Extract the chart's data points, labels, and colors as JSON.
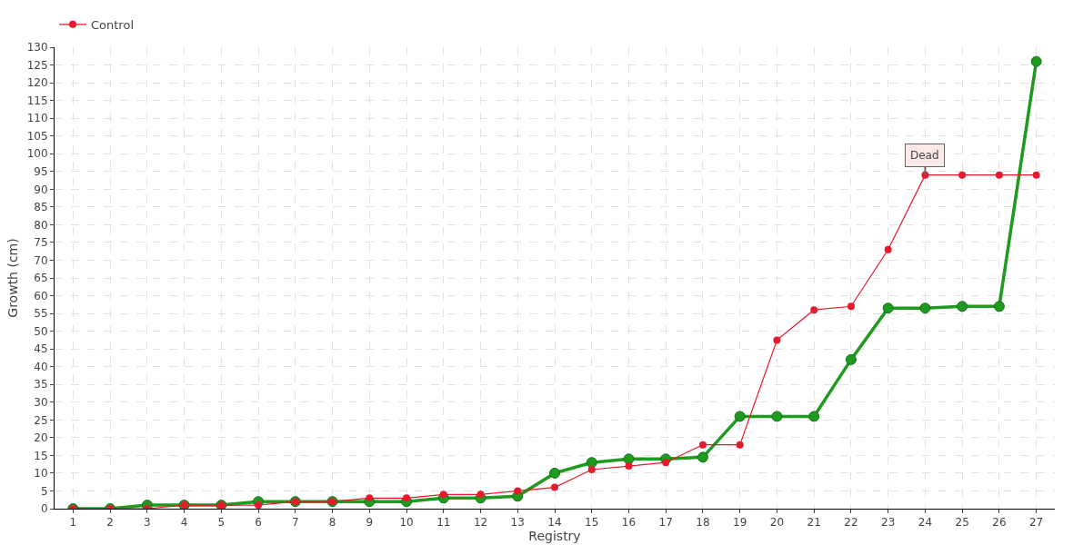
{
  "chart_data": {
    "type": "line",
    "xlabel": "Registry",
    "ylabel": "Growth (cm)",
    "x": [
      1,
      2,
      3,
      4,
      5,
      6,
      7,
      8,
      9,
      10,
      11,
      12,
      13,
      14,
      15,
      16,
      17,
      18,
      19,
      20,
      21,
      22,
      23,
      24,
      25,
      26,
      27
    ],
    "xlim": [
      0.5,
      27.5
    ],
    "xticks": [
      1,
      2,
      3,
      4,
      5,
      6,
      7,
      8,
      9,
      10,
      11,
      12,
      13,
      14,
      15,
      16,
      17,
      18,
      19,
      20,
      21,
      22,
      23,
      24,
      25,
      26,
      27
    ],
    "series": [
      {
        "color": "#1e9a1e",
        "values": [
          0,
          0,
          1,
          1,
          1,
          2,
          2,
          2,
          2,
          2,
          3,
          3,
          3.5,
          10,
          13,
          14,
          14,
          14.5,
          26,
          26,
          26,
          42,
          56.5,
          56.5,
          57,
          57,
          126
        ]
      },
      {
        "name": "Control",
        "color": "#e8192c",
        "values": [
          0,
          0,
          0,
          1,
          1,
          1,
          2,
          2,
          3,
          3,
          4,
          4,
          5,
          6,
          11,
          12,
          13,
          18,
          18,
          47.5,
          56,
          57,
          73,
          94,
          94,
          94,
          94
        ]
      }
    ],
    "ylim": [
      0,
      130
    ],
    "yticks": [
      0,
      5,
      10,
      15,
      20,
      25,
      30,
      35,
      40,
      45,
      50,
      55,
      60,
      65,
      70,
      75,
      80,
      85,
      90,
      95,
      100,
      105,
      110,
      115,
      120,
      125,
      130
    ],
    "annotations": [
      {
        "text": "Dead",
        "x": 24,
        "y": 94
      }
    ],
    "grid": true,
    "legend": "top left",
    "marker": "circle",
    "line_style": "solid"
  }
}
